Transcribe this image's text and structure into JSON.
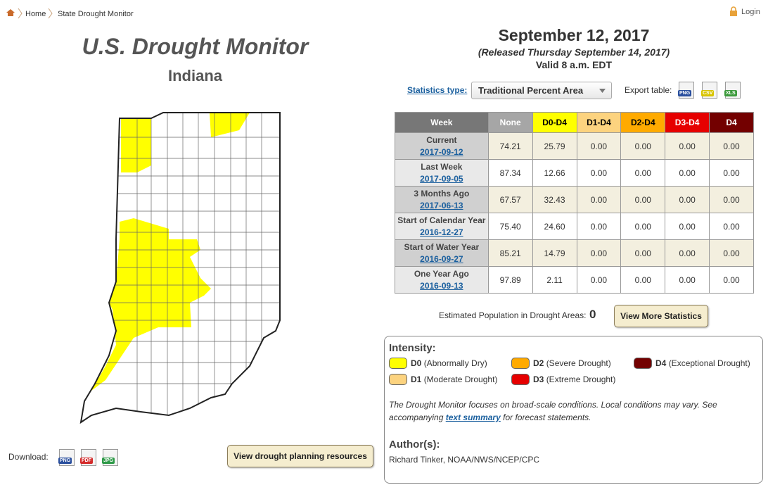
{
  "breadcrumb": {
    "home": "Home",
    "current": "State Drought Monitor"
  },
  "login": "Login",
  "header": {
    "title": "U.S. Drought Monitor",
    "state": "Indiana"
  },
  "date": {
    "title": "September 12, 2017",
    "released": "(Released Thursday September 14, 2017)",
    "valid": "Valid 8 a.m. EDT"
  },
  "controls": {
    "stats_label": "Statistics type:",
    "stats_value": "Traditional Percent Area",
    "export_label": "Export table:",
    "export_buttons": [
      "PNG",
      "CSV",
      "XLS"
    ]
  },
  "table": {
    "columns": [
      "Week",
      "None",
      "D0-D4",
      "D1-D4",
      "D2-D4",
      "D3-D4",
      "D4"
    ],
    "rows": [
      {
        "week": "Current",
        "date": "2017-09-12",
        "values": [
          "74.21",
          "25.79",
          "0.00",
          "0.00",
          "0.00",
          "0.00"
        ]
      },
      {
        "week": "Last Week",
        "date": "2017-09-05",
        "values": [
          "87.34",
          "12.66",
          "0.00",
          "0.00",
          "0.00",
          "0.00"
        ]
      },
      {
        "week": "3 Months Ago",
        "date": "2017-06-13",
        "values": [
          "67.57",
          "32.43",
          "0.00",
          "0.00",
          "0.00",
          "0.00"
        ]
      },
      {
        "week": "Start of Calendar Year",
        "date": "2016-12-27",
        "values": [
          "75.40",
          "24.60",
          "0.00",
          "0.00",
          "0.00",
          "0.00"
        ]
      },
      {
        "week": "Start of Water Year",
        "date": "2016-09-27",
        "values": [
          "85.21",
          "14.79",
          "0.00",
          "0.00",
          "0.00",
          "0.00"
        ]
      },
      {
        "week": "One Year Ago",
        "date": "2016-09-13",
        "values": [
          "97.89",
          "2.11",
          "0.00",
          "0.00",
          "0.00",
          "0.00"
        ]
      }
    ]
  },
  "population": {
    "label": "Estimated Population in Drought Areas:",
    "value": "0",
    "button": "View More Statistics"
  },
  "legend": {
    "title": "Intensity:",
    "items": [
      {
        "code": "D0",
        "desc": "(Abnormally Dry)",
        "color": "#ffff00"
      },
      {
        "code": "D1",
        "desc": "(Moderate Drought)",
        "color": "#fcd37f"
      },
      {
        "code": "D2",
        "desc": "(Severe Drought)",
        "color": "#ffaa00"
      },
      {
        "code": "D3",
        "desc": "(Extreme Drought)",
        "color": "#e60000"
      },
      {
        "code": "D4",
        "desc": "(Exceptional Drought)",
        "color": "#730000"
      }
    ]
  },
  "note": {
    "before": "The Drought Monitor focuses on broad-scale conditions. Local conditions may vary. See accompanying",
    "link": "text summary",
    "after": "for forecast statements."
  },
  "author": {
    "title": "Author(s):",
    "name": "Richard Tinker, NOAA/NWS/NCEP/CPC"
  },
  "download": {
    "label": "Download:",
    "buttons": [
      "PNG",
      "PDF",
      "JPG"
    ],
    "planning_button": "View drought planning resources"
  }
}
